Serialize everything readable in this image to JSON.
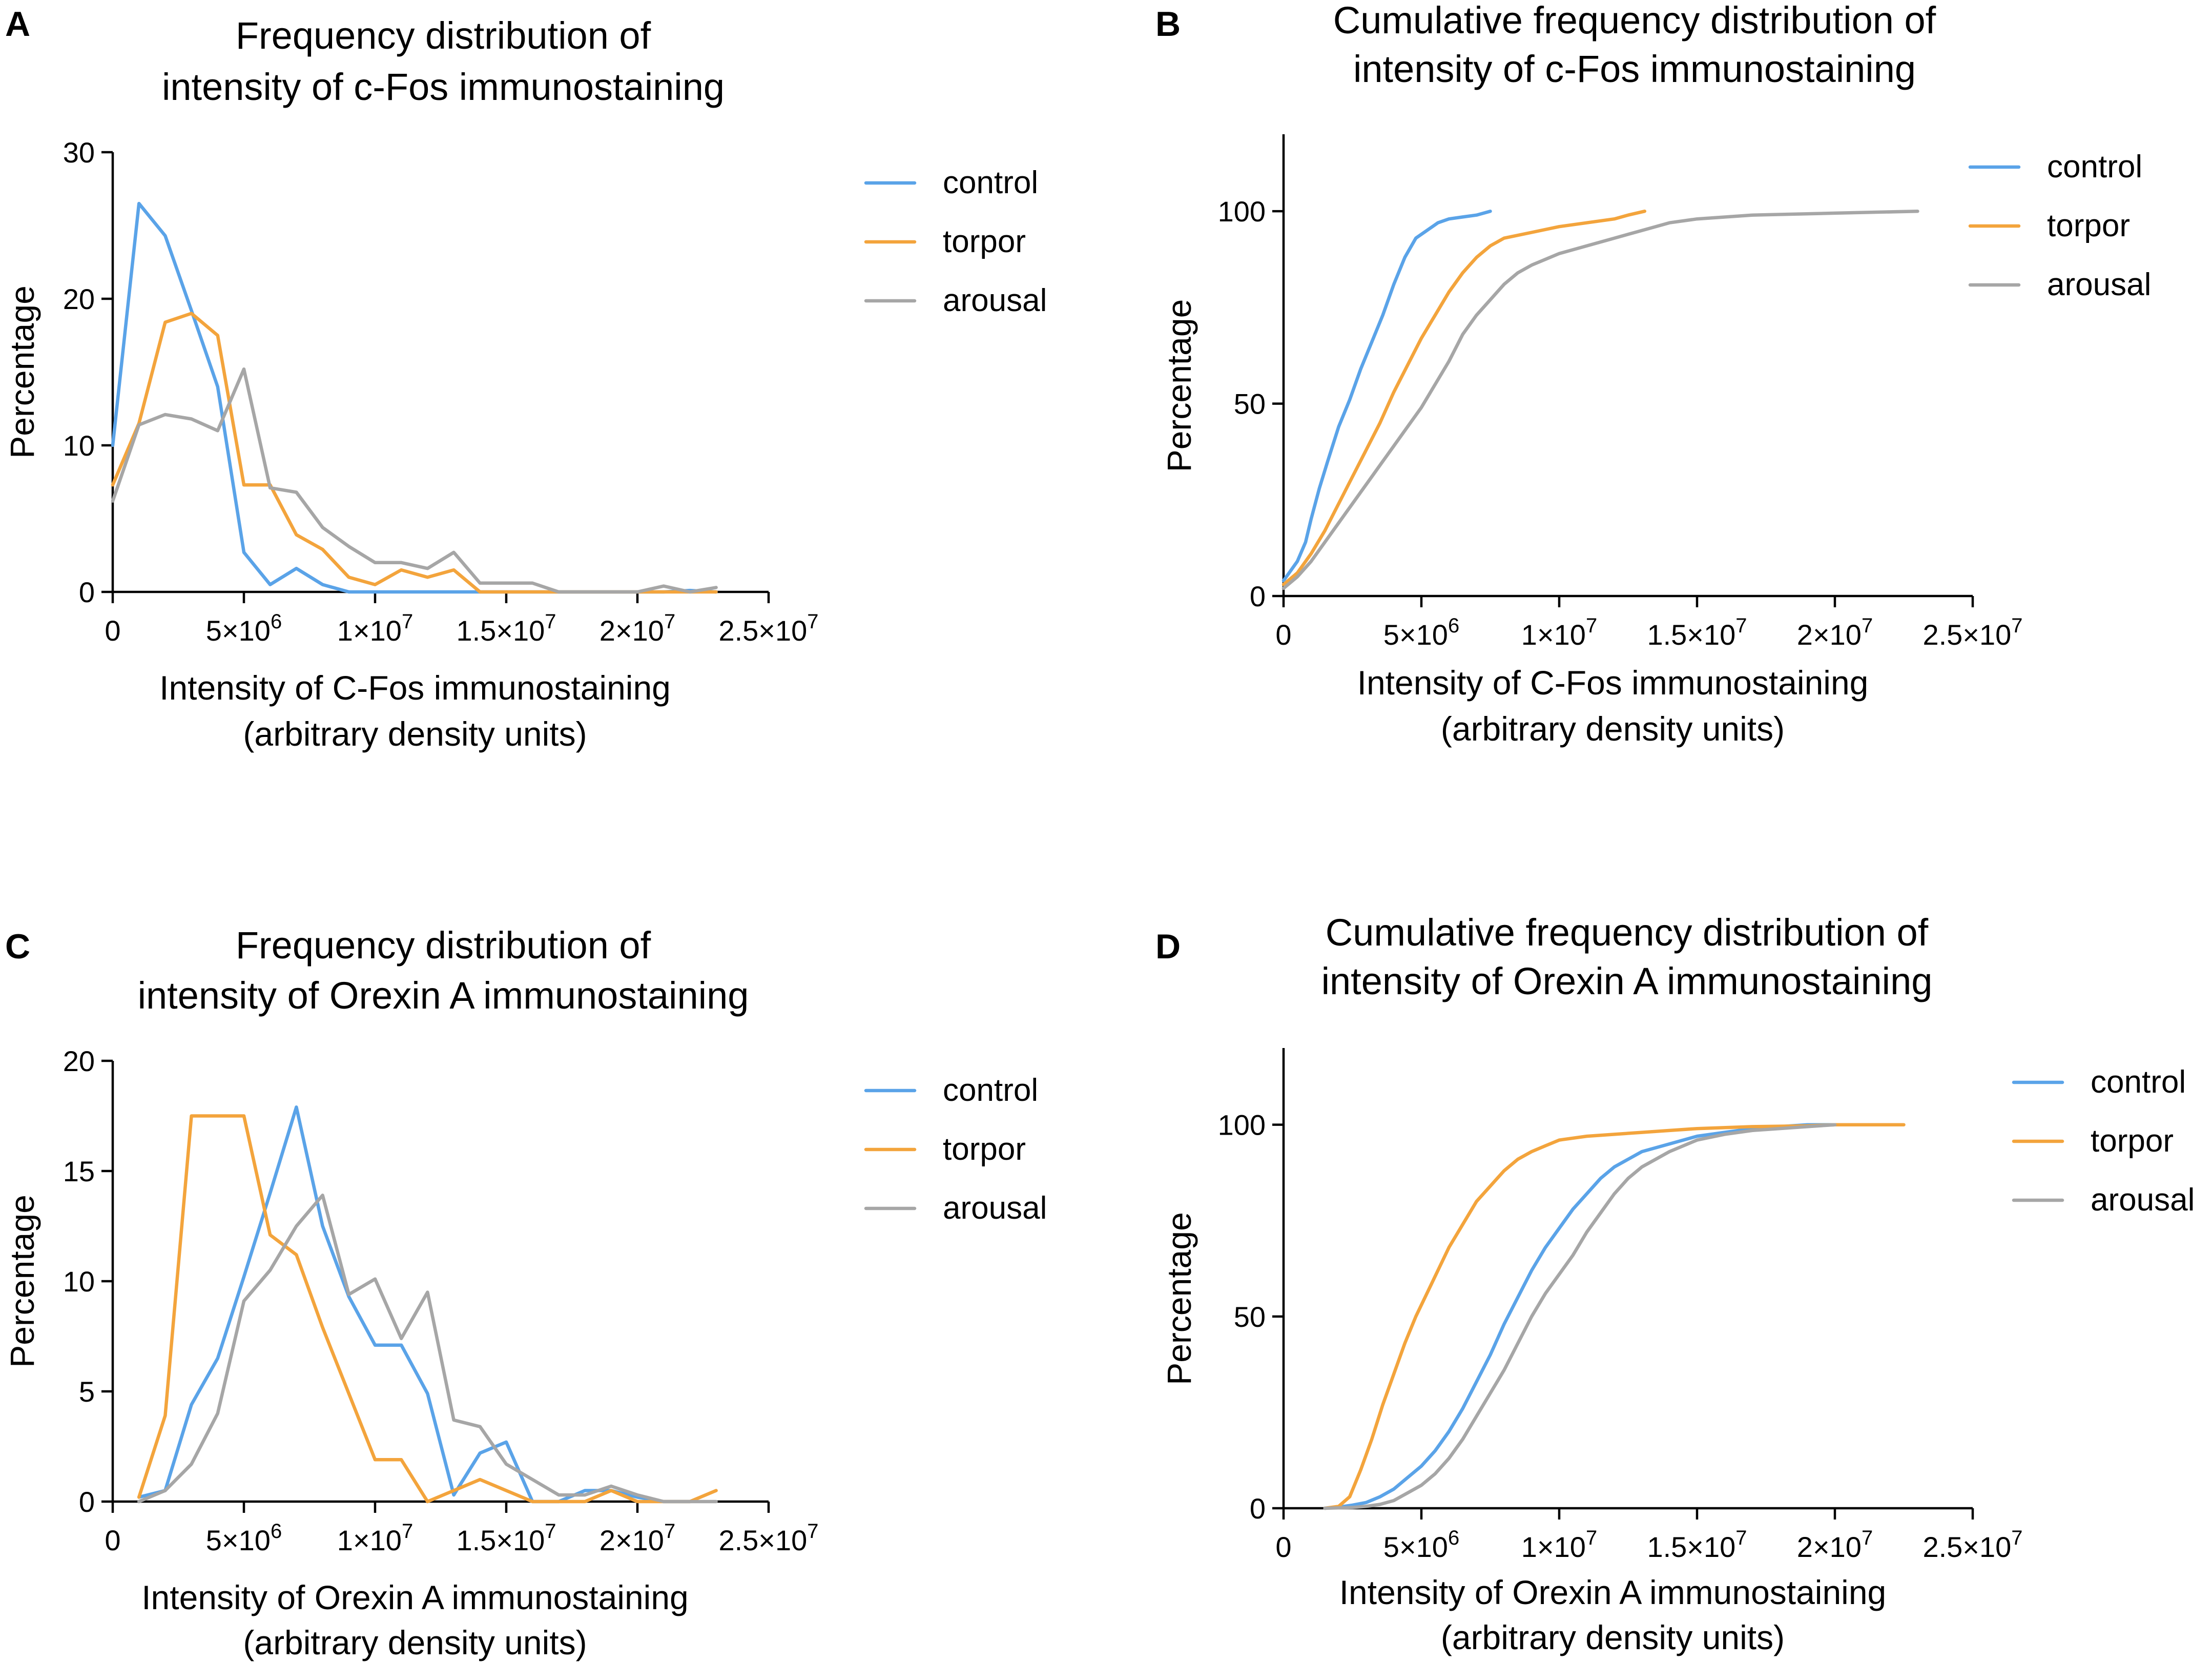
{
  "colors": {
    "control": "#5aa3e8",
    "torpor": "#f3a43c",
    "arousal": "#a6a6a6"
  },
  "chart_data": [
    {
      "panel": "A",
      "type": "line",
      "title": [
        "Frequency distribution of",
        "intensity of c-Fos immunostaining"
      ],
      "xlabel": [
        "Intensity of C-Fos immunostaining",
        "(arbitrary density units)"
      ],
      "ylabel": "Percentage",
      "xlim": [
        0,
        25000000
      ],
      "ylim": [
        0,
        30
      ],
      "x_ticks": [
        0,
        5000000,
        10000000,
        15000000,
        20000000,
        25000000
      ],
      "x_tick_labels": [
        {
          "base": "0",
          "exp": ""
        },
        {
          "base": "5×10",
          "exp": "6"
        },
        {
          "base": "1×10",
          "exp": "7"
        },
        {
          "base": "1.5×10",
          "exp": "7"
        },
        {
          "base": "2×10",
          "exp": "7"
        },
        {
          "base": "2.5×10",
          "exp": "7"
        }
      ],
      "y_ticks": [
        0,
        10,
        20,
        30
      ],
      "y_tick_labels": [
        "0",
        "10",
        "20",
        "30"
      ],
      "legend": [
        "control",
        "torpor",
        "arousal"
      ],
      "legend_position": "right",
      "series": [
        {
          "name": "control",
          "color_key": "control",
          "x": [
            0,
            1000000,
            2000000,
            3000000,
            4000000,
            5000000,
            6000000,
            7000000,
            8000000,
            9000000,
            10000000,
            11000000,
            12000000,
            13000000,
            14000000,
            15000000,
            16000000,
            17000000,
            18000000,
            19000000,
            20000000,
            21000000,
            22000000,
            23000000
          ],
          "y": [
            10,
            26.5,
            24.3,
            19.2,
            14,
            2.7,
            0.5,
            1.6,
            0.5,
            0,
            0,
            0,
            0,
            0,
            0,
            0,
            0,
            0,
            0,
            0,
            0,
            0,
            0.1,
            0
          ]
        },
        {
          "name": "torpor",
          "color_key": "torpor",
          "x": [
            0,
            1000000,
            2000000,
            3000000,
            4000000,
            5000000,
            6000000,
            7000000,
            8000000,
            9000000,
            10000000,
            11000000,
            12000000,
            13000000,
            14000000,
            15000000,
            16000000,
            17000000,
            18000000,
            19000000,
            20000000,
            21000000,
            22000000,
            23000000
          ],
          "y": [
            7.3,
            11.5,
            18.4,
            19,
            17.5,
            7.3,
            7.3,
            3.9,
            2.9,
            1.0,
            0.5,
            1.5,
            1.0,
            1.5,
            0,
            0,
            0,
            0,
            0,
            0,
            0,
            0,
            0,
            0
          ]
        },
        {
          "name": "arousal",
          "color_key": "arousal",
          "x": [
            0,
            1000000,
            2000000,
            3000000,
            4000000,
            5000000,
            6000000,
            7000000,
            8000000,
            9000000,
            10000000,
            11000000,
            12000000,
            13000000,
            14000000,
            15000000,
            16000000,
            17000000,
            18000000,
            19000000,
            20000000,
            21000000,
            22000000,
            23000000
          ],
          "y": [
            6.2,
            11.4,
            12.1,
            11.8,
            11,
            15.2,
            7.1,
            6.8,
            4.4,
            3.1,
            2.0,
            2.0,
            1.6,
            2.7,
            0.6,
            0.6,
            0.6,
            0,
            0,
            0,
            0,
            0.4,
            0,
            0.3
          ]
        }
      ]
    },
    {
      "panel": "B",
      "type": "line",
      "title": [
        "Cumulative frequency distribution of",
        "intensity of c-Fos immunostaining"
      ],
      "xlabel": [
        "Intensity of C-Fos immunostaining",
        "(arbitrary density units)"
      ],
      "ylabel": "Percentage",
      "xlim": [
        0,
        25000000
      ],
      "ylim": [
        0,
        120
      ],
      "x_ticks": [
        0,
        5000000,
        10000000,
        15000000,
        20000000,
        25000000
      ],
      "x_tick_labels": [
        {
          "base": "0",
          "exp": ""
        },
        {
          "base": "5×10",
          "exp": "6"
        },
        {
          "base": "1×10",
          "exp": "7"
        },
        {
          "base": "1.5×10",
          "exp": "7"
        },
        {
          "base": "2×10",
          "exp": "7"
        },
        {
          "base": "2.5×10",
          "exp": "7"
        }
      ],
      "y_ticks": [
        0,
        50,
        100
      ],
      "y_tick_labels": [
        "0",
        "50",
        "100"
      ],
      "legend": [
        "control",
        "torpor",
        "arousal"
      ],
      "legend_position": "right",
      "series": [
        {
          "name": "control",
          "color_key": "control",
          "x": [
            0,
            200000,
            500000,
            800000,
            1000000,
            1300000,
            1600000,
            2000000,
            2400000,
            2800000,
            3200000,
            3600000,
            4000000,
            4400000,
            4800000,
            5200000,
            5600000,
            6000000,
            6500000,
            7000000,
            7500000
          ],
          "y": [
            4,
            6,
            9,
            14,
            20,
            28,
            35,
            44,
            51,
            59,
            66,
            73,
            81,
            88,
            93,
            95,
            97,
            98,
            98.5,
            99,
            100
          ]
        },
        {
          "name": "torpor",
          "color_key": "torpor",
          "x": [
            0,
            500000,
            1000000,
            1500000,
            2000000,
            2500000,
            3000000,
            3500000,
            4000000,
            4500000,
            5000000,
            5500000,
            6000000,
            6500000,
            7000000,
            7500000,
            8000000,
            9000000,
            10000000,
            11000000,
            12000000,
            12500000,
            13100000
          ],
          "y": [
            3,
            6,
            11,
            17,
            24,
            31,
            38,
            45,
            53,
            60,
            67,
            73,
            79,
            84,
            88,
            91,
            93,
            94.5,
            96,
            97,
            98,
            99,
            100
          ]
        },
        {
          "name": "arousal",
          "color_key": "arousal",
          "x": [
            0,
            500000,
            1000000,
            1500000,
            2000000,
            2500000,
            3000000,
            3500000,
            4000000,
            4500000,
            5000000,
            5500000,
            6000000,
            6500000,
            7000000,
            7500000,
            8000000,
            8500000,
            9000000,
            10000000,
            11000000,
            12000000,
            13000000,
            14000000,
            15000000,
            17000000,
            20000000,
            23000000
          ],
          "y": [
            2,
            5,
            9,
            14,
            19,
            24,
            29,
            34,
            39,
            44,
            49,
            55,
            61,
            68,
            73,
            77,
            81,
            84,
            86,
            89,
            91,
            93,
            95,
            97,
            98,
            99,
            99.5,
            100
          ]
        }
      ]
    },
    {
      "panel": "C",
      "type": "line",
      "title": [
        "Frequency distribution of",
        "intensity of Orexin A immunostaining"
      ],
      "xlabel": [
        "Intensity of Orexin A immunostaining",
        "(arbitrary density units)"
      ],
      "ylabel": "Percentage",
      "xlim": [
        0,
        25000000
      ],
      "ylim": [
        0,
        20
      ],
      "x_ticks": [
        0,
        5000000,
        10000000,
        15000000,
        20000000,
        25000000
      ],
      "x_tick_labels": [
        {
          "base": "0",
          "exp": ""
        },
        {
          "base": "5×10",
          "exp": "6"
        },
        {
          "base": "1×10",
          "exp": "7"
        },
        {
          "base": "1.5×10",
          "exp": "7"
        },
        {
          "base": "2×10",
          "exp": "7"
        },
        {
          "base": "2.5×10",
          "exp": "7"
        }
      ],
      "y_ticks": [
        0,
        5,
        10,
        15,
        20
      ],
      "y_tick_labels": [
        "0",
        "5",
        "10",
        "15",
        "20"
      ],
      "legend": [
        "control",
        "torpor",
        "arousal"
      ],
      "legend_position": "right",
      "series": [
        {
          "name": "control",
          "color_key": "control",
          "x": [
            1000000,
            2000000,
            3000000,
            4000000,
            5000000,
            6000000,
            7000000,
            8000000,
            9000000,
            10000000,
            11000000,
            12000000,
            13000000,
            14000000,
            15000000,
            16000000,
            17000000,
            18000000,
            19000000,
            20000000,
            21000000,
            22000000
          ],
          "y": [
            0.2,
            0.5,
            4.4,
            6.5,
            10.2,
            14,
            17.9,
            12.5,
            9.3,
            7.1,
            7.1,
            4.9,
            0.3,
            2.2,
            2.7,
            0,
            0,
            0.5,
            0.5,
            0.2,
            0,
            0
          ]
        },
        {
          "name": "torpor",
          "color_key": "torpor",
          "x": [
            1000000,
            2000000,
            3000000,
            4000000,
            5000000,
            6000000,
            7000000,
            8000000,
            9000000,
            10000000,
            11000000,
            12000000,
            13000000,
            14000000,
            15000000,
            16000000,
            17000000,
            18000000,
            19000000,
            20000000,
            21000000,
            22000000,
            23000000
          ],
          "y": [
            0.2,
            3.9,
            17.5,
            17.5,
            17.5,
            12.1,
            11.2,
            7.9,
            4.9,
            1.9,
            1.9,
            0,
            0.5,
            1.0,
            0.5,
            0,
            0,
            0,
            0.5,
            0,
            0,
            0,
            0.5
          ]
        },
        {
          "name": "arousal",
          "color_key": "arousal",
          "x": [
            1000000,
            2000000,
            3000000,
            4000000,
            5000000,
            6000000,
            7000000,
            8000000,
            9000000,
            10000000,
            11000000,
            12000000,
            13000000,
            14000000,
            15000000,
            16000000,
            17000000,
            18000000,
            19000000,
            20000000,
            21000000,
            22000000,
            23000000
          ],
          "y": [
            0,
            0.5,
            1.7,
            4.0,
            9.1,
            10.5,
            12.5,
            13.9,
            9.4,
            10.1,
            7.4,
            9.5,
            3.7,
            3.4,
            1.7,
            1.0,
            0.3,
            0.3,
            0.7,
            0.3,
            0,
            0,
            0
          ]
        }
      ]
    },
    {
      "panel": "D",
      "type": "line",
      "title": [
        "Cumulative frequency distribution of",
        "intensity of Orexin A immunostaining"
      ],
      "xlabel": [
        "Intensity of Orexin A immunostaining",
        "(arbitrary density units)"
      ],
      "ylabel": "Percentage",
      "xlim": [
        0,
        25000000
      ],
      "ylim": [
        0,
        120
      ],
      "x_ticks": [
        0,
        5000000,
        10000000,
        15000000,
        20000000,
        25000000
      ],
      "x_tick_labels": [
        {
          "base": "0",
          "exp": ""
        },
        {
          "base": "5×10",
          "exp": "6"
        },
        {
          "base": "1×10",
          "exp": "7"
        },
        {
          "base": "1.5×10",
          "exp": "7"
        },
        {
          "base": "2×10",
          "exp": "7"
        },
        {
          "base": "2.5×10",
          "exp": "7"
        }
      ],
      "y_ticks": [
        0,
        50,
        100
      ],
      "y_tick_labels": [
        "0",
        "50",
        "100"
      ],
      "legend": [
        "control",
        "torpor",
        "arousal"
      ],
      "legend_position": "right",
      "series": [
        {
          "name": "control",
          "color_key": "control",
          "x": [
            1500000,
            2000000,
            2500000,
            3000000,
            3500000,
            4000000,
            4500000,
            5000000,
            5500000,
            6000000,
            6500000,
            7000000,
            7500000,
            8000000,
            8500000,
            9000000,
            9500000,
            10000000,
            10500000,
            11000000,
            11500000,
            12000000,
            13000000,
            14000000,
            15000000,
            16000000,
            17000000,
            18000000,
            19000000,
            20000000
          ],
          "y": [
            0,
            0.3,
            0.8,
            1.5,
            3,
            5,
            8,
            11,
            15,
            20,
            26,
            33,
            40,
            48,
            55,
            62,
            68,
            73,
            78,
            82,
            86,
            89,
            93,
            95,
            97,
            98,
            99,
            99.5,
            100,
            100
          ]
        },
        {
          "name": "torpor",
          "color_key": "torpor",
          "x": [
            1500000,
            2000000,
            2400000,
            2800000,
            3200000,
            3600000,
            4000000,
            4400000,
            4800000,
            5200000,
            5600000,
            6000000,
            6500000,
            7000000,
            7500000,
            8000000,
            8500000,
            9000000,
            9500000,
            10000000,
            11000000,
            12000000,
            13000000,
            14000000,
            15000000,
            17000000,
            19000000,
            20000000,
            22500000
          ],
          "y": [
            0,
            0.5,
            3,
            10,
            18,
            27,
            35,
            43,
            50,
            56,
            62,
            68,
            74,
            80,
            84,
            88,
            91,
            93,
            94.5,
            96,
            97,
            97.5,
            98,
            98.5,
            99,
            99.5,
            99.7,
            100,
            100
          ]
        },
        {
          "name": "arousal",
          "color_key": "arousal",
          "x": [
            1500000,
            2500000,
            3000000,
            3500000,
            4000000,
            4500000,
            5000000,
            5500000,
            6000000,
            6500000,
            7000000,
            7500000,
            8000000,
            8500000,
            9000000,
            9500000,
            10000000,
            10500000,
            11000000,
            11500000,
            12000000,
            12500000,
            13000000,
            14000000,
            15000000,
            16000000,
            17000000,
            19000000,
            20000000
          ],
          "y": [
            0,
            0.2,
            0.5,
            1.0,
            2,
            4,
            6,
            9,
            13,
            18,
            24,
            30,
            36,
            43,
            50,
            56,
            61,
            66,
            72,
            77,
            82,
            86,
            89,
            93,
            96,
            97.5,
            98.5,
            99.5,
            100
          ]
        }
      ]
    }
  ]
}
